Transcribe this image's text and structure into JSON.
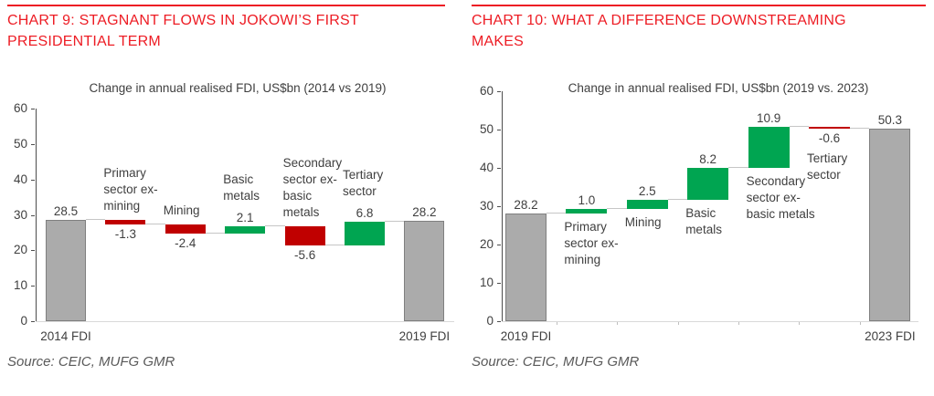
{
  "panels": [
    {
      "title": "CHART 9: STAGNANT FLOWS IN JOKOWI’S FIRST\nPRESIDENTIAL TERM",
      "source": "Source: CEIC, MUFG GMR"
    },
    {
      "title": "CHART 10: WHAT A DIFFERENCE DOWNSTREAMING\nMAKES",
      "source": "Source: CEIC, MUFG GMR"
    }
  ],
  "colors": {
    "accent_red": "#ED1C24",
    "bar_negative": "#C00000",
    "bar_positive": "#00A551",
    "bar_total_fill": "#ABABAB",
    "bar_total_border": "#7F7F7F",
    "connector_gray": "#C6C6C6",
    "axis_dark": "#4D4D4D",
    "axis_light": "#D9D9D9",
    "text_dark": "#3F3F3F",
    "source_gray": "#595959"
  },
  "chart_data": [
    {
      "type": "bar",
      "subtype": "waterfall",
      "title": "Change in annual realised FDI, US$bn (2014 vs 2019)",
      "ylim": [
        0,
        60
      ],
      "yticks": [
        0,
        10,
        20,
        30,
        40,
        50,
        60
      ],
      "grid": false,
      "legend": false,
      "bars": [
        {
          "category": "2014 FDI",
          "kind": "total",
          "value": 28.5,
          "value_label": "28.5",
          "label_lines": "2014 FDI",
          "label_pos": "axis"
        },
        {
          "category": "Primary sector ex-mining",
          "kind": "delta",
          "value": -1.3,
          "value_label": "-1.3",
          "label_lines": "Primary\nsector ex-\nmining",
          "label_pos": "above"
        },
        {
          "category": "Mining",
          "kind": "delta",
          "value": -2.4,
          "value_label": "-2.4",
          "label_lines": "Mining",
          "label_pos": "above"
        },
        {
          "category": "Basic metals",
          "kind": "delta",
          "value": 2.1,
          "value_label": "2.1",
          "label_lines": "Basic\nmetals",
          "label_pos": "above"
        },
        {
          "category": "Secondary sector ex-basic metals",
          "kind": "delta",
          "value": -5.6,
          "value_label": "-5.6",
          "label_lines": "Secondary\nsector ex-\nbasic\nmetals",
          "label_pos": "above"
        },
        {
          "category": "Tertiary sector",
          "kind": "delta",
          "value": 6.8,
          "value_label": "6.8",
          "label_lines": "Tertiary\nsector",
          "label_pos": "above"
        },
        {
          "category": "2019 FDI",
          "kind": "total",
          "value": 28.2,
          "value_label": "28.2",
          "label_lines": "2019 FDI",
          "label_pos": "axis"
        }
      ]
    },
    {
      "type": "bar",
      "subtype": "waterfall",
      "title": "Change in annual realised FDI, US$bn (2019 vs. 2023)",
      "ylim": [
        0,
        60
      ],
      "yticks": [
        0,
        10,
        20,
        30,
        40,
        50,
        60
      ],
      "grid": false,
      "legend": false,
      "bars": [
        {
          "category": "2019 FDI",
          "kind": "total",
          "value": 28.2,
          "value_label": "28.2",
          "label_lines": "2019 FDI",
          "label_pos": "axis"
        },
        {
          "category": "Primary sector ex-mining",
          "kind": "delta",
          "value": 1.0,
          "value_label": "1.0",
          "label_lines": "Primary\nsector ex-\nmining",
          "label_pos": "below"
        },
        {
          "category": "Mining",
          "kind": "delta",
          "value": 2.5,
          "value_label": "2.5",
          "label_lines": "Mining",
          "label_pos": "below"
        },
        {
          "category": "Basic metals",
          "kind": "delta",
          "value": 8.2,
          "value_label": "8.2",
          "label_lines": "Basic\nmetals",
          "label_pos": "below"
        },
        {
          "category": "Secondary sector ex-basic metals",
          "kind": "delta",
          "value": 10.9,
          "value_label": "10.9",
          "label_lines": "Secondary\nsector ex-\nbasic metals",
          "label_pos": "below"
        },
        {
          "category": "Tertiary sector",
          "kind": "delta",
          "value": -0.6,
          "value_label": "-0.6",
          "label_lines": "Tertiary\nsector",
          "label_pos": "below"
        },
        {
          "category": "2023 FDI",
          "kind": "total",
          "value": 50.3,
          "value_label": "50.3",
          "label_lines": "2023 FDI",
          "label_pos": "axis"
        }
      ]
    }
  ]
}
